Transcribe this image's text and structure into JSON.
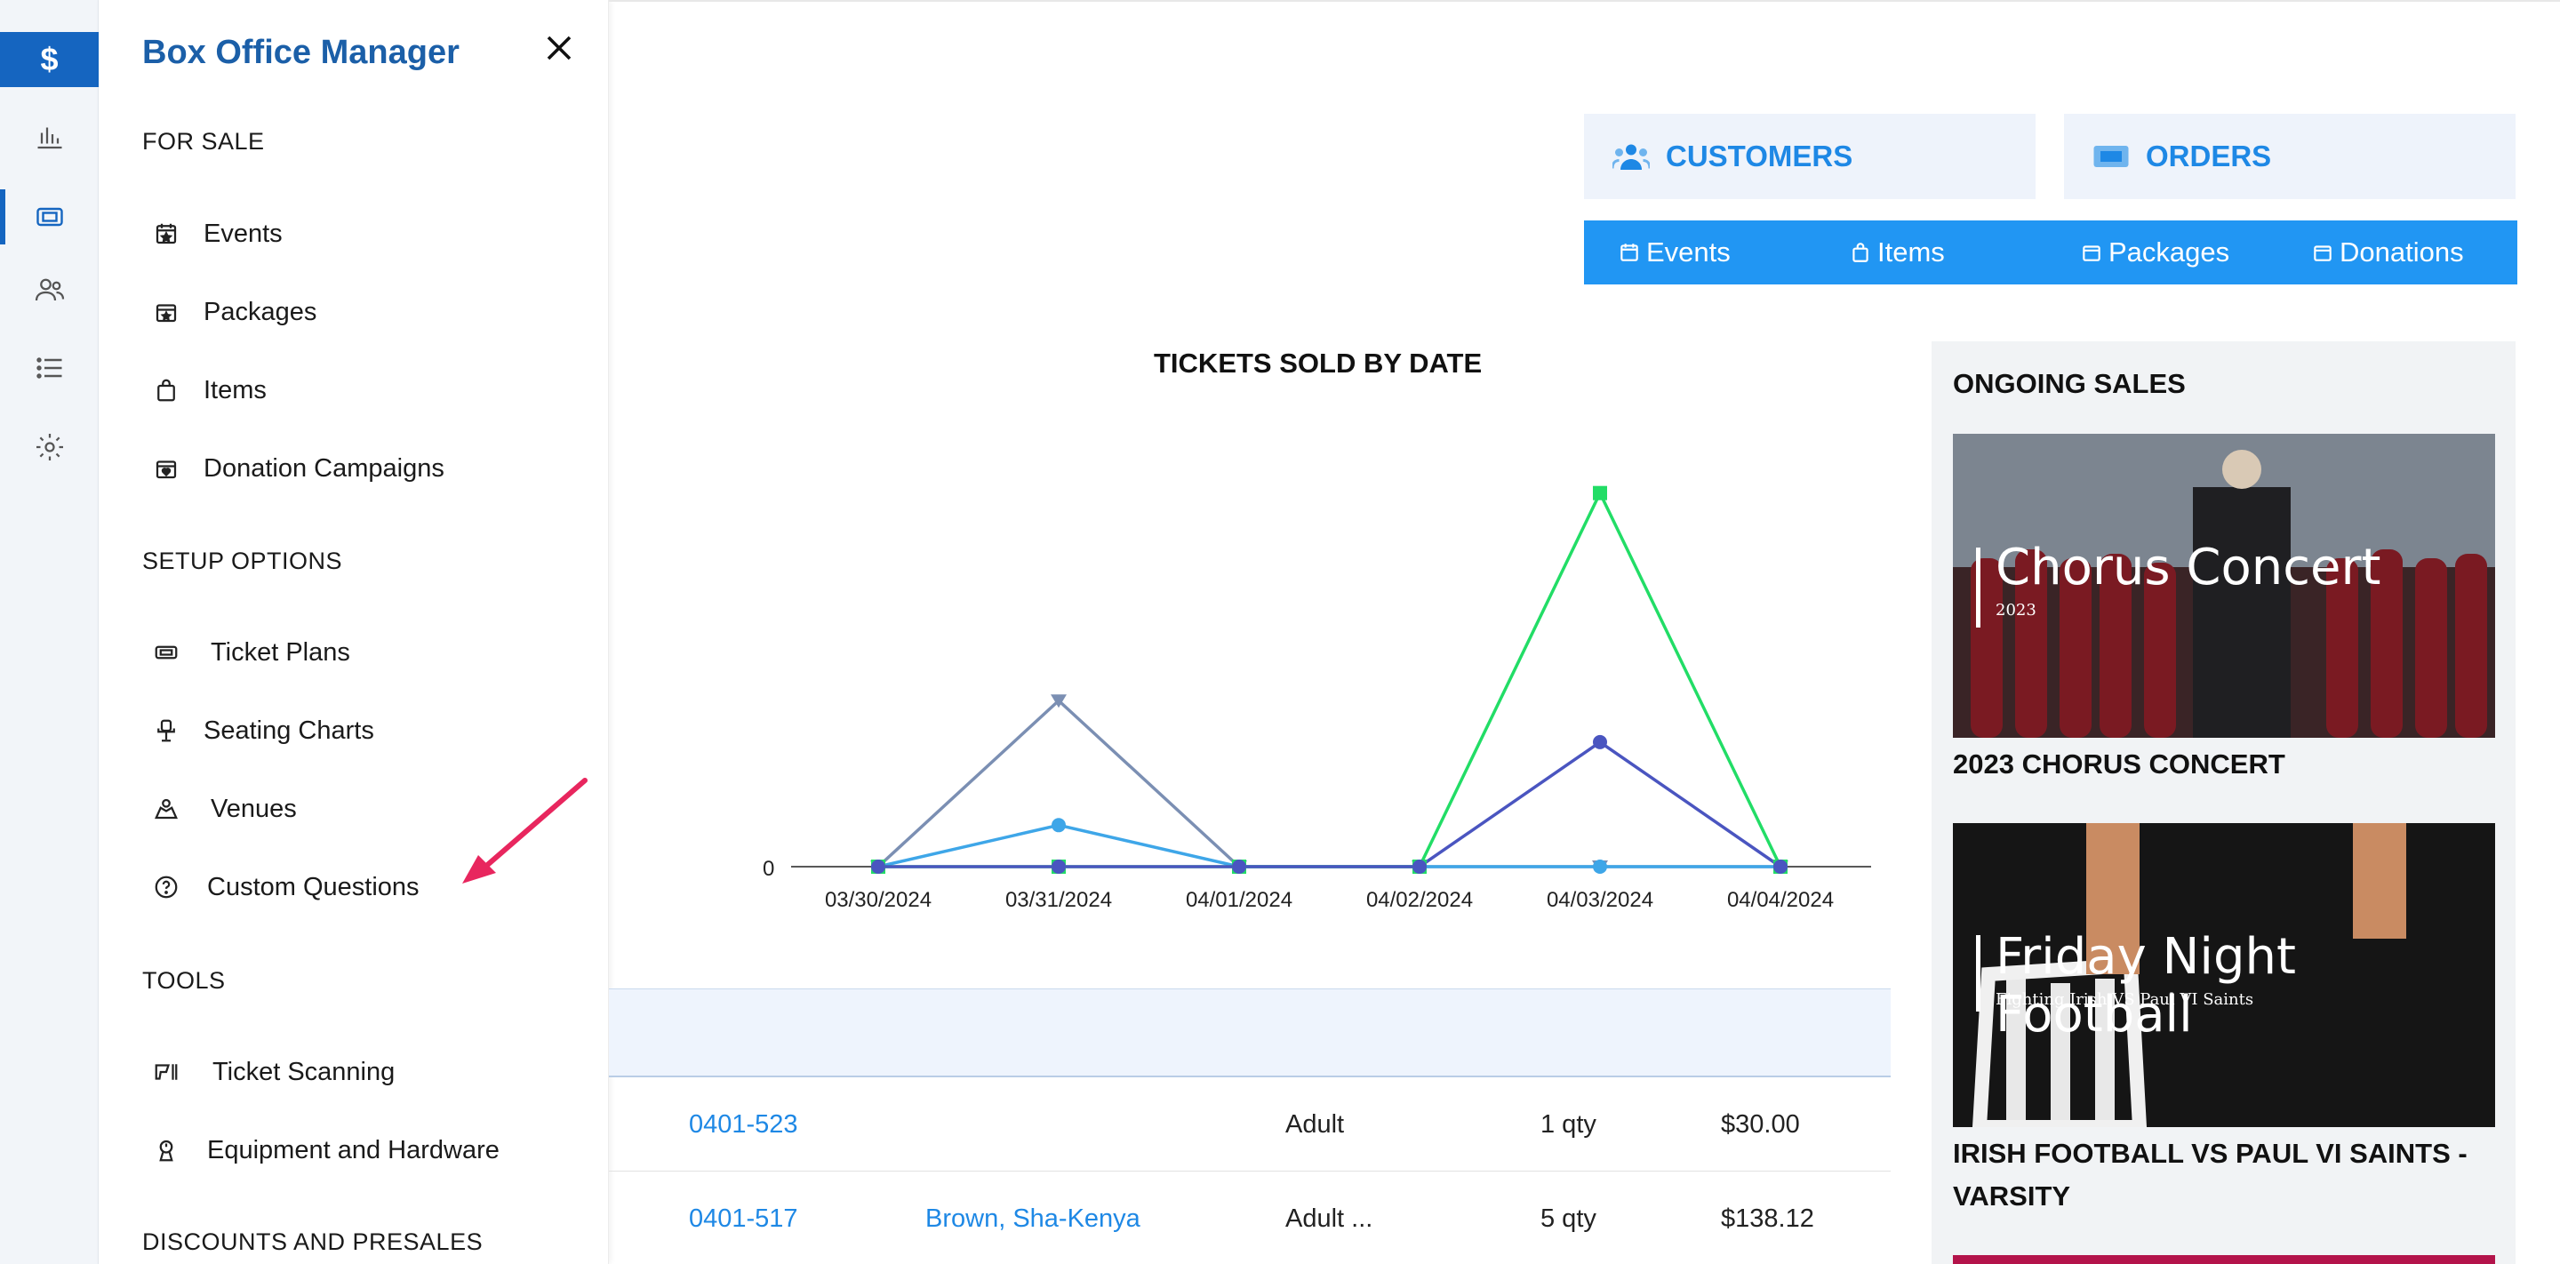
{
  "rail": {
    "top_glyph": "$"
  },
  "drawer": {
    "title": "Box Office Manager",
    "sections": {
      "for_sale": "FOR SALE",
      "setup": "SETUP OPTIONS",
      "tools": "TOOLS",
      "discounts": "DISCOUNTS AND PRESALES"
    },
    "items": {
      "events": "Events",
      "packages": "Packages",
      "items": "Items",
      "donations": "Donation Campaigns",
      "ticket_plans": "Ticket Plans",
      "seating_charts": "Seating Charts",
      "venues": "Venues",
      "custom_questions": "Custom Questions",
      "ticket_scanning": "Ticket Scanning",
      "equipment": "Equipment and Hardware"
    }
  },
  "buttons": {
    "customers": "CUSTOMERS",
    "orders": "ORDERS"
  },
  "tabs": {
    "events": "Events",
    "items": "Items",
    "packages": "Packages",
    "donations": "Donations"
  },
  "chart_data": {
    "type": "line",
    "title": "TICKETS SOLD BY DATE",
    "categories": [
      "03/30/2024",
      "03/31/2024",
      "04/01/2024",
      "04/02/2024",
      "04/03/2024",
      "04/04/2024"
    ],
    "y_tick_labels": [
      "0"
    ],
    "ylim": [
      0,
      10
    ],
    "grid": false,
    "legend": "none",
    "series": [
      {
        "color": "#7b8fb3",
        "values": [
          0,
          4,
          0,
          0,
          0,
          0
        ],
        "marker": "triangle-down"
      },
      {
        "color": "#3ea6e8",
        "values": [
          0,
          1,
          0,
          0,
          0,
          0
        ],
        "marker": "circle"
      },
      {
        "color": "#22dd66",
        "values": [
          0,
          0,
          0,
          0,
          9,
          0
        ],
        "marker": "square"
      },
      {
        "color": "#4a55c0",
        "values": [
          0,
          0,
          0,
          0,
          3,
          0
        ],
        "marker": "circle"
      }
    ]
  },
  "orders": [
    {
      "id": "0401-523",
      "customer": "",
      "type": "Adult",
      "qty": "1 qty",
      "total": "$30.00"
    },
    {
      "id": "0401-517",
      "customer": "Brown, Sha-Kenya",
      "type": "Adult ...",
      "qty": "5 qty",
      "total": "$138.12"
    }
  ],
  "sales": {
    "title": "ONGOING SALES",
    "cards": [
      {
        "img_title": "Chorus Concert",
        "img_sub": "2023",
        "name": "2023 CHORUS CONCERT"
      },
      {
        "img_title": "Friday Night Football",
        "img_sub": "Fighting Irish VS Paul VI Saints",
        "name": "IRISH FOOTBALL VS PAUL VI SAINTS - VARSITY"
      }
    ]
  },
  "colors": {
    "brand": "#1565c0",
    "accent": "#2196f3",
    "link": "#1e88e5",
    "arrow": "#e8265e"
  }
}
